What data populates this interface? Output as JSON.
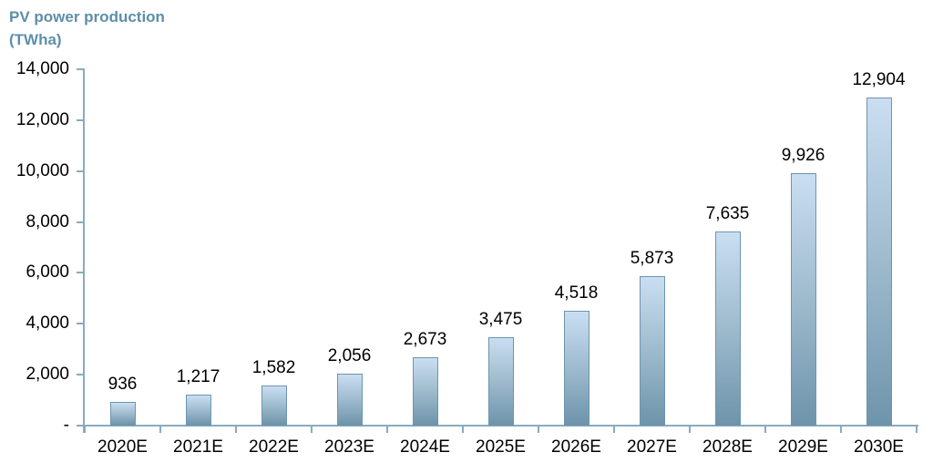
{
  "chart_data": {
    "type": "bar",
    "title": "PV power production (TWha)",
    "categories": [
      "2020E",
      "2021E",
      "2022E",
      "2023E",
      "2024E",
      "2025E",
      "2026E",
      "2027E",
      "2028E",
      "2029E",
      "2030E"
    ],
    "values": [
      936,
      1217,
      1582,
      2056,
      2673,
      3475,
      4518,
      5873,
      7635,
      9926,
      12904
    ],
    "value_labels": [
      "936",
      "1,217",
      "1,582",
      "2,056",
      "2,673",
      "3,475",
      "4,518",
      "5,873",
      "7,635",
      "9,926",
      "12,904"
    ],
    "y_ticks": [
      {
        "value": 0,
        "label": "-"
      },
      {
        "value": 2000,
        "label": "2,000"
      },
      {
        "value": 4000,
        "label": "4,000"
      },
      {
        "value": 6000,
        "label": "6,000"
      },
      {
        "value": 8000,
        "label": "8,000"
      },
      {
        "value": 10000,
        "label": "10,000"
      },
      {
        "value": 12000,
        "label": "12,000"
      },
      {
        "value": 14000,
        "label": "14,000"
      }
    ],
    "ylim": [
      0,
      14000
    ],
    "xlabel": "",
    "ylabel": "PV power production (TWha)",
    "grid": false,
    "legend_position": "none",
    "colors": {
      "title_text": "#5d8fa8",
      "axis": "#87abc0",
      "bar_gradient_top": "#cadef2",
      "bar_gradient_bottom": "#6e94ab",
      "bar_border": "#6d95ad",
      "label_text": "#000000"
    }
  }
}
